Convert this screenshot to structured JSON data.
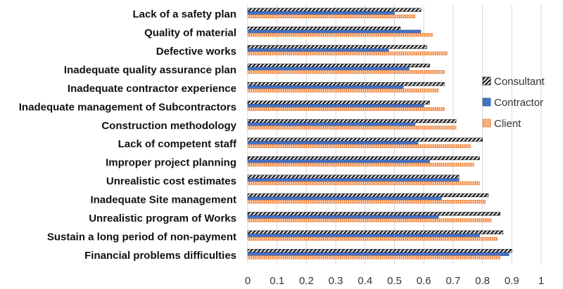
{
  "chart_data": {
    "type": "bar",
    "orientation": "horizontal",
    "title": "",
    "xlabel": "",
    "ylabel": "",
    "xlim": [
      0,
      1
    ],
    "ticks": [
      "0",
      "0.1",
      "0.2",
      "0.3",
      "0.4",
      "0.5",
      "0.6",
      "0.7",
      "0.8",
      "0.9",
      "1"
    ],
    "grid": true,
    "legend_position": "right",
    "categories": [
      "Lack of a safety plan",
      "Quality of material",
      "Defective works",
      "Inadequate quality assurance plan",
      "Inadequate contractor experience",
      "Inadequate management of Subcontractors",
      "Construction methodology",
      "Lack of competent staff",
      "Improper project planning",
      "Unrealistic cost estimates",
      "Inadequate Site management",
      "Unrealistic program of Works",
      "Sustain a long period of non-payment",
      "Financial problems difficulties"
    ],
    "series": [
      {
        "name": "Consultant",
        "pattern": "diagonal-hatch",
        "color": "#1a1a1a",
        "values": [
          0.59,
          0.52,
          0.61,
          0.62,
          0.67,
          0.62,
          0.71,
          0.8,
          0.79,
          0.72,
          0.82,
          0.86,
          0.87,
          0.9
        ]
      },
      {
        "name": "Contractor",
        "pattern": "solid",
        "color": "#4472c4",
        "values": [
          0.5,
          0.59,
          0.48,
          0.55,
          0.53,
          0.6,
          0.57,
          0.58,
          0.62,
          0.72,
          0.66,
          0.65,
          0.79,
          0.89
        ]
      },
      {
        "name": "Client",
        "pattern": "grid",
        "color": "#ed7d31",
        "values": [
          0.57,
          0.63,
          0.68,
          0.67,
          0.65,
          0.67,
          0.71,
          0.76,
          0.77,
          0.79,
          0.81,
          0.83,
          0.85,
          0.86
        ]
      }
    ]
  }
}
